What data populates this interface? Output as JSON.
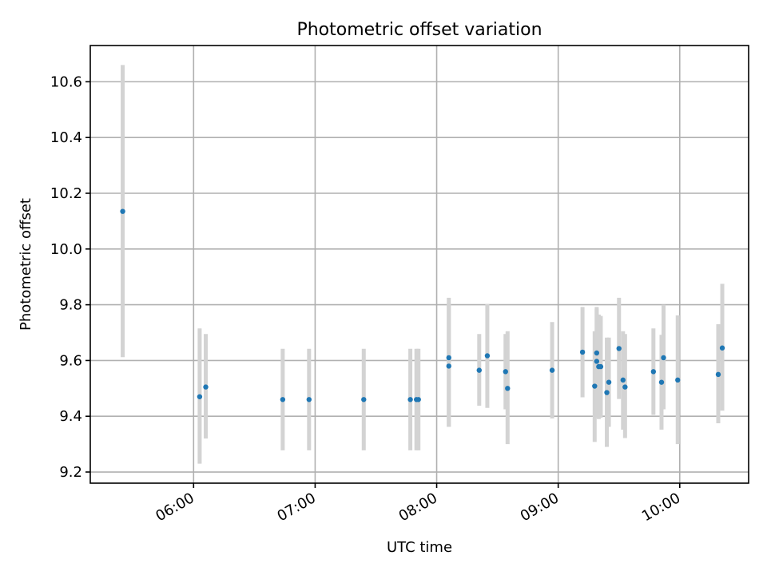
{
  "chart_data": {
    "type": "scatter",
    "title": "Photometric offset variation",
    "xlabel": "UTC time",
    "ylabel": "Photometric offset",
    "grid": true,
    "xlim": [
      "05:09",
      "10:34"
    ],
    "ylim": [
      9.16,
      10.73
    ],
    "x_ticks": [
      "06:00",
      "07:00",
      "08:00",
      "09:00",
      "10:00"
    ],
    "y_ticks": [
      "9.2",
      "9.4",
      "9.6",
      "9.8",
      "10.0",
      "10.2",
      "10.4",
      "10.6"
    ],
    "colors": {
      "points": "#1f77b4",
      "error_bars": "#d3d3d3",
      "grid": "#b0b0b0"
    },
    "points": [
      {
        "x": "05:25",
        "y": 10.135,
        "ylo": 9.612,
        "yhi": 10.66
      },
      {
        "x": "06:03",
        "y": 9.47,
        "ylo": 9.23,
        "yhi": 9.715
      },
      {
        "x": "06:06",
        "y": 9.505,
        "ylo": 9.32,
        "yhi": 9.695
      },
      {
        "x": "06:44",
        "y": 9.46,
        "ylo": 9.278,
        "yhi": 9.642
      },
      {
        "x": "06:57",
        "y": 9.46,
        "ylo": 9.278,
        "yhi": 9.642
      },
      {
        "x": "07:24",
        "y": 9.46,
        "ylo": 9.278,
        "yhi": 9.642
      },
      {
        "x": "07:47",
        "y": 9.46,
        "ylo": 9.278,
        "yhi": 9.642
      },
      {
        "x": "07:50",
        "y": 9.46,
        "ylo": 9.278,
        "yhi": 9.642
      },
      {
        "x": "07:51",
        "y": 9.46,
        "ylo": 9.278,
        "yhi": 9.642
      },
      {
        "x": "08:06",
        "y": 9.61,
        "ylo": 9.362,
        "yhi": 9.825
      },
      {
        "x": "08:06",
        "y": 9.58,
        "ylo": 9.362,
        "yhi": 9.805
      },
      {
        "x": "08:21",
        "y": 9.565,
        "ylo": 9.438,
        "yhi": 9.695
      },
      {
        "x": "08:25",
        "y": 9.617,
        "ylo": 9.43,
        "yhi": 9.802
      },
      {
        "x": "08:34",
        "y": 9.56,
        "ylo": 9.425,
        "yhi": 9.695
      },
      {
        "x": "08:35",
        "y": 9.5,
        "ylo": 9.3,
        "yhi": 9.705
      },
      {
        "x": "08:57",
        "y": 9.565,
        "ylo": 9.392,
        "yhi": 9.738
      },
      {
        "x": "09:12",
        "y": 9.63,
        "ylo": 9.468,
        "yhi": 9.792
      },
      {
        "x": "09:18",
        "y": 9.508,
        "ylo": 9.308,
        "yhi": 9.705
      },
      {
        "x": "09:19",
        "y": 9.627,
        "ylo": 9.405,
        "yhi": 9.792
      },
      {
        "x": "09:19",
        "y": 9.597,
        "ylo": 9.395,
        "yhi": 9.785
      },
      {
        "x": "09:20",
        "y": 9.578,
        "ylo": 9.39,
        "yhi": 9.765
      },
      {
        "x": "09:21",
        "y": 9.578,
        "ylo": 9.395,
        "yhi": 9.76
      },
      {
        "x": "09:24",
        "y": 9.485,
        "ylo": 9.29,
        "yhi": 9.682
      },
      {
        "x": "09:25",
        "y": 9.522,
        "ylo": 9.362,
        "yhi": 9.682
      },
      {
        "x": "09:30",
        "y": 9.643,
        "ylo": 9.462,
        "yhi": 9.825
      },
      {
        "x": "09:32",
        "y": 9.53,
        "ylo": 9.352,
        "yhi": 9.705
      },
      {
        "x": "09:33",
        "y": 9.505,
        "ylo": 9.322,
        "yhi": 9.695
      },
      {
        "x": "09:47",
        "y": 9.56,
        "ylo": 9.405,
        "yhi": 9.715
      },
      {
        "x": "09:51",
        "y": 9.522,
        "ylo": 9.352,
        "yhi": 9.692
      },
      {
        "x": "09:52",
        "y": 9.61,
        "ylo": 9.425,
        "yhi": 9.8
      },
      {
        "x": "09:59",
        "y": 9.53,
        "ylo": 9.3,
        "yhi": 9.762
      },
      {
        "x": "10:19",
        "y": 9.55,
        "ylo": 9.375,
        "yhi": 9.73
      },
      {
        "x": "10:21",
        "y": 9.645,
        "ylo": 9.42,
        "yhi": 9.875
      }
    ]
  }
}
